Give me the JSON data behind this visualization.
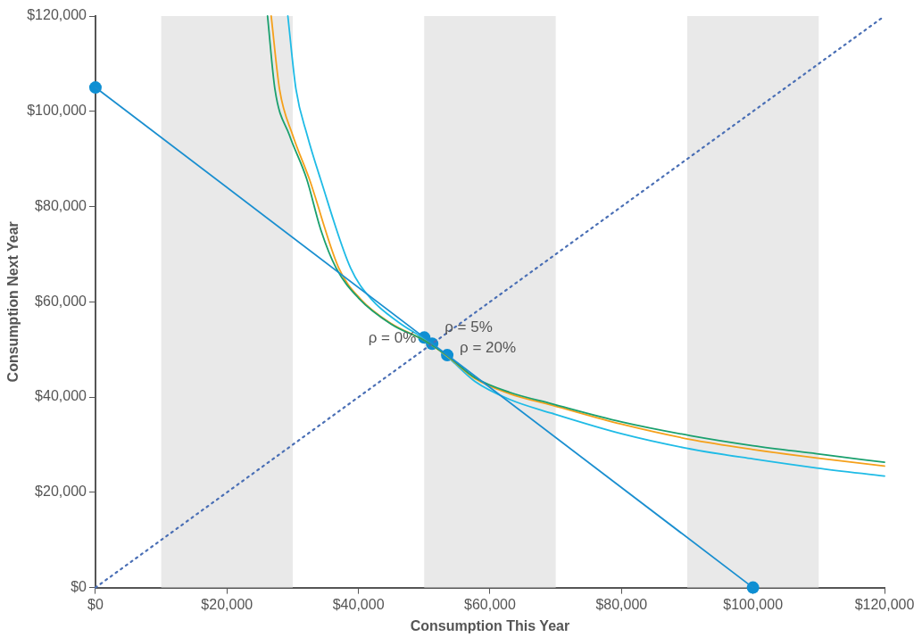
{
  "chart_data": {
    "type": "line",
    "xlabel": "Consumption This Year",
    "ylabel": "Consumption Next Year",
    "xlim": [
      0,
      120000
    ],
    "ylim": [
      0,
      120000
    ],
    "xticks": [
      {
        "value": 0,
        "label": "$0"
      },
      {
        "value": 20000,
        "label": "$20,000"
      },
      {
        "value": 40000,
        "label": "$40,000"
      },
      {
        "value": 60000,
        "label": "$60,000"
      },
      {
        "value": 80000,
        "label": "$80,000"
      },
      {
        "value": 100000,
        "label": "$100,000"
      },
      {
        "value": 120000,
        "label": "$120,000"
      }
    ],
    "yticks": [
      {
        "value": 0,
        "label": "$0"
      },
      {
        "value": 20000,
        "label": "$20,000"
      },
      {
        "value": 40000,
        "label": "$40,000"
      },
      {
        "value": 60000,
        "label": "$60,000"
      },
      {
        "value": 80000,
        "label": "$80,000"
      },
      {
        "value": 100000,
        "label": "$100,000"
      },
      {
        "value": 120000,
        "label": "$120,000"
      }
    ],
    "grid": false,
    "legend": false,
    "bands": [
      {
        "axis": "x",
        "from": 10000,
        "to": 30000,
        "color": "#e9e9e9"
      },
      {
        "axis": "x",
        "from": 50000,
        "to": 70000,
        "color": "#e9e9e9"
      },
      {
        "axis": "x",
        "from": 90000,
        "to": 110000,
        "color": "#e9e9e9"
      }
    ],
    "series": [
      {
        "color": "#4a6fb5",
        "line_style": "dotted",
        "marker": "none",
        "x": [
          0,
          120000
        ],
        "values": [
          0,
          120000
        ]
      },
      {
        "color": "#1a8fd0",
        "line_style": "solid",
        "marker": "none",
        "x": [
          0,
          100000
        ],
        "values": [
          105000,
          0
        ]
      },
      {
        "color": "#1aa06e",
        "line_style": "solid",
        "marker": "none",
        "x": [
          26170,
          27300,
          29500,
          32100,
          34300,
          36600,
          40000,
          45000,
          50000,
          53500,
          57700,
          63000,
          69400,
          80000,
          90500,
          100000,
          109700,
          120000
        ],
        "values": [
          120000,
          104600,
          95000,
          85900,
          75000,
          67100,
          60800,
          55300,
          51900,
          48700,
          44100,
          41000,
          38600,
          34800,
          31900,
          29800,
          28100,
          26300
        ]
      },
      {
        "color": "#f5a01a",
        "line_style": "solid",
        "marker": "none",
        "x": [
          26730,
          28000,
          30000,
          32500,
          37000,
          40300,
          45000,
          50000,
          53500,
          57700,
          63000,
          69400,
          80000,
          90500,
          100000,
          109700,
          120000
        ],
        "values": [
          120000,
          104600,
          95000,
          85900,
          67100,
          60600,
          55400,
          51900,
          48600,
          43900,
          40700,
          38300,
          34300,
          31100,
          29000,
          27200,
          25500
        ]
      },
      {
        "color": "#1fbbe6",
        "line_style": "solid",
        "marker": "none",
        "x": [
          29260,
          30500,
          32200,
          34200,
          38800,
          42000,
          46000,
          50000,
          53500,
          57700,
          63000,
          69400,
          80000,
          90500,
          100000,
          109700,
          120000
        ],
        "values": [
          120000,
          104600,
          95000,
          85900,
          67100,
          60500,
          55800,
          52200,
          48500,
          43300,
          39500,
          36600,
          32300,
          29100,
          27000,
          25100,
          23400
        ]
      },
      {
        "type": "scatter",
        "color": "#0e8fd3",
        "marker": "circle",
        "x": [
          0,
          100000,
          50000,
          51200,
          53500
        ],
        "values": [
          105000,
          0,
          52500,
          51200,
          48800
        ]
      }
    ],
    "annotations": [
      {
        "text": "ρ = 0%",
        "x": 50000,
        "y": 52500
      },
      {
        "text": "ρ = 5%",
        "x": 51200,
        "y": 51200
      },
      {
        "text": "ρ = 20%",
        "x": 53500,
        "y": 48800
      }
    ]
  }
}
